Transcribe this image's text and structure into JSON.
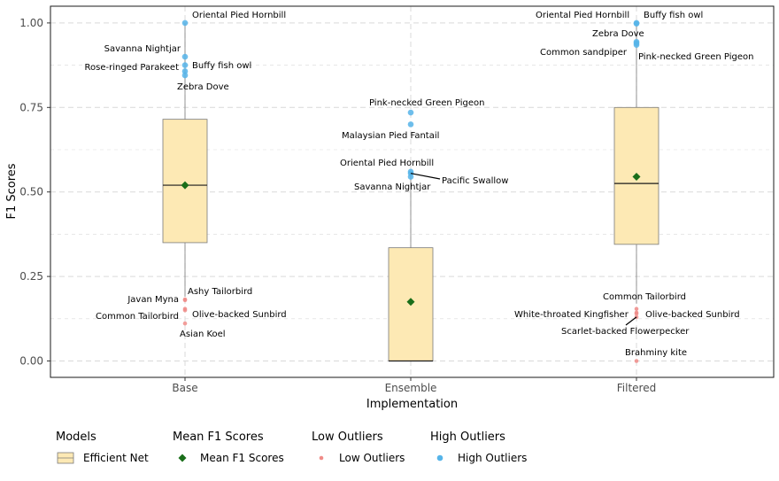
{
  "chart_data": {
    "type": "box",
    "xlabel": "Implementation",
    "ylabel": "F1 Scores",
    "ylim": [
      -0.05,
      1.05
    ],
    "yticks": [
      0.0,
      0.25,
      0.5,
      0.75,
      1.0
    ],
    "ytick_labels": [
      "0.00",
      "0.25",
      "0.50",
      "0.75",
      "1.00"
    ],
    "grid": true,
    "categories": [
      "Base",
      "Ensemble",
      "Filtered"
    ],
    "boxes": [
      {
        "category": "Base",
        "q1": 0.35,
        "median": 0.52,
        "q3": 0.715,
        "whisker_low": 0.19,
        "whisker_high": 1.0,
        "mean": 0.52
      },
      {
        "category": "Ensemble",
        "q1": 0.0,
        "median": 0.0,
        "q3": 0.335,
        "whisker_low": 0.0,
        "whisker_high": 0.56,
        "mean": 0.175
      },
      {
        "category": "Filtered",
        "q1": 0.345,
        "median": 0.525,
        "q3": 0.75,
        "whisker_low": 0.17,
        "whisker_high": 1.0,
        "mean": 0.545
      }
    ],
    "high_outliers": [
      {
        "category": "Base",
        "y": 1.0,
        "label": "Oriental Pied Hornbill"
      },
      {
        "category": "Base",
        "y": 0.9,
        "label": "Savanna Nightjar"
      },
      {
        "category": "Base",
        "y": 0.875,
        "label": "Buffy fish owl"
      },
      {
        "category": "Base",
        "y": 0.857,
        "label": "Rose-ringed Parakeet"
      },
      {
        "category": "Base",
        "y": 0.845,
        "label": "Zebra Dove"
      },
      {
        "category": "Ensemble",
        "y": 0.735,
        "label": "Pink-necked Green Pigeon"
      },
      {
        "category": "Ensemble",
        "y": 0.7,
        "label": "Malaysian Pied Fantail"
      },
      {
        "category": "Ensemble",
        "y": 0.56,
        "label": "Oriental Pied Hornbill"
      },
      {
        "category": "Ensemble",
        "y": 0.555,
        "label": "Pacific Swallow"
      },
      {
        "category": "Ensemble",
        "y": 0.545,
        "label": "Savanna Nightjar"
      },
      {
        "category": "Filtered",
        "y": 1.0,
        "label": "Oriental Pied Hornbill"
      },
      {
        "category": "Filtered",
        "y": 0.998,
        "label": "Buffy fish owl"
      },
      {
        "category": "Filtered",
        "y": 0.944,
        "label": "Zebra Dove"
      },
      {
        "category": "Filtered",
        "y": 0.94,
        "label": "Common sandpiper"
      },
      {
        "category": "Filtered",
        "y": 0.935,
        "label": "Pink-necked Green Pigeon"
      }
    ],
    "low_outliers": [
      {
        "category": "Base",
        "y": 0.182,
        "label": "Ashy Tailorbird"
      },
      {
        "category": "Base",
        "y": 0.18,
        "label": "Javan Myna"
      },
      {
        "category": "Base",
        "y": 0.154,
        "label": "Common Tailorbird"
      },
      {
        "category": "Base",
        "y": 0.15,
        "label": "Olive-backed Sunbird"
      },
      {
        "category": "Base",
        "y": 0.111,
        "label": "Asian Koel"
      },
      {
        "category": "Filtered",
        "y": 0.154,
        "label": "Common Tailorbird"
      },
      {
        "category": "Filtered",
        "y": 0.143,
        "label": "Olive-backed Sunbird"
      },
      {
        "category": "Filtered",
        "y": 0.14,
        "label": "White-throated Kingfisher"
      },
      {
        "category": "Filtered",
        "y": 0.13,
        "label": "Scarlet-backed Flowerpecker"
      },
      {
        "category": "Filtered",
        "y": 0.0,
        "label": "Brahminy kite"
      }
    ],
    "legend": {
      "placement": "bottom",
      "groups": [
        {
          "title": "Models",
          "label": "Efficient Net",
          "symbol": "box"
        },
        {
          "title": "Mean F1 Scores",
          "label": "Mean F1 Scores",
          "symbol": "diamond"
        },
        {
          "title": "Low Outliers",
          "label": "Low Outliers",
          "symbol": "point-low"
        },
        {
          "title": "High Outliers",
          "label": "High Outliers",
          "symbol": "point-high"
        }
      ]
    },
    "colors": {
      "box_fill": "#fde9b4",
      "box_stroke": "#7a7a7a",
      "median": "#1a1a1a",
      "mean": "#1a6e1a",
      "low_outlier": "#f08c88",
      "high_outlier": "#56b4e9",
      "grid": "#d9d9d9"
    }
  }
}
